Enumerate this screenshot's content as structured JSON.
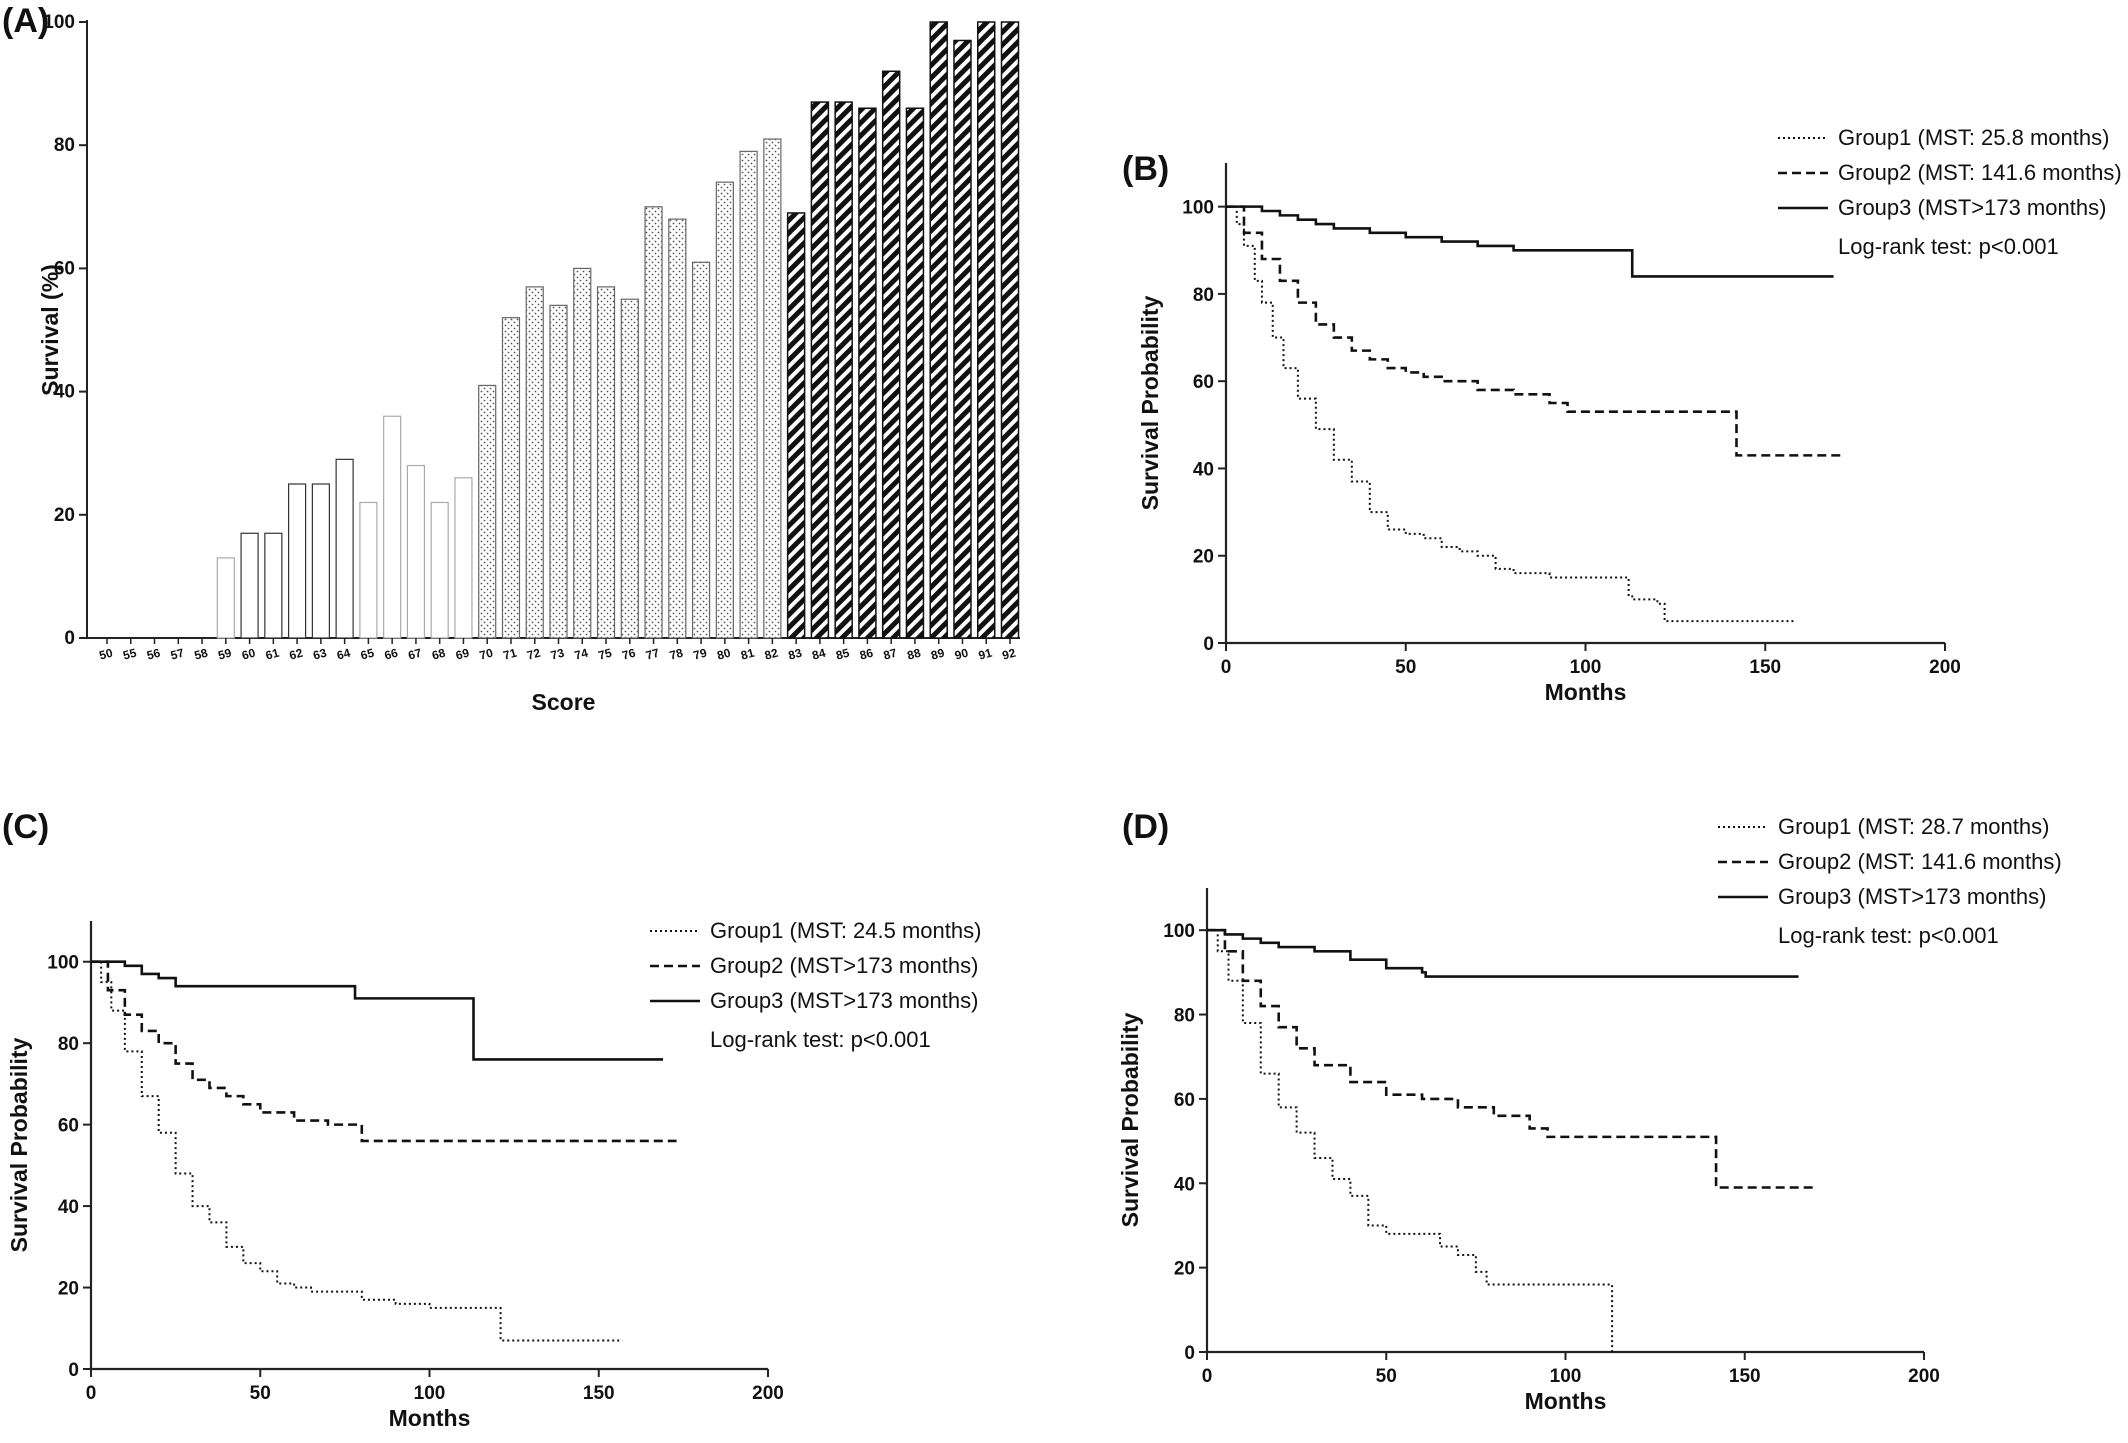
{
  "chart_data": [
    {
      "panel": "(A)",
      "type": "bar",
      "xlabel": "Score",
      "ylabel": "Survival (%)",
      "ylim": [
        0,
        100
      ],
      "yticks": [
        0,
        20,
        40,
        60,
        80,
        100
      ],
      "categories": [
        "50",
        "55",
        "56",
        "57",
        "58",
        "59",
        "60",
        "61",
        "62",
        "63",
        "64",
        "65",
        "66",
        "67",
        "68",
        "69",
        "70",
        "71",
        "72",
        "73",
        "74",
        "75",
        "76",
        "77",
        "78",
        "79",
        "80",
        "81",
        "82",
        "83",
        "84",
        "85",
        "86",
        "87",
        "88",
        "89",
        "90",
        "91",
        "92"
      ],
      "values": [
        0,
        0,
        0,
        0,
        0,
        13,
        17,
        17,
        25,
        25,
        29,
        22,
        36,
        28,
        22,
        26,
        41,
        52,
        57,
        54,
        60,
        57,
        55,
        70,
        68,
        61,
        74,
        79,
        81,
        69,
        87,
        87,
        86,
        92,
        86,
        100,
        97,
        100,
        100
      ],
      "fill_patterns": [
        "none",
        "none",
        "none",
        "none",
        "none",
        "light",
        "dark",
        "dark",
        "dark",
        "dark",
        "dark",
        "light",
        "light",
        "light",
        "light",
        "light",
        "dots",
        "dots",
        "dots",
        "dots",
        "dots",
        "dots",
        "dots",
        "dots",
        "dots",
        "dots",
        "dots",
        "dots",
        "dots",
        "hatch",
        "hatch",
        "hatch",
        "hatch",
        "hatch",
        "hatch",
        "hatch",
        "hatch",
        "hatch",
        "hatch"
      ]
    },
    {
      "panel": "(B)",
      "type": "line",
      "xlabel": "Months",
      "ylabel": "Survival Probability",
      "xlim": [
        0,
        200
      ],
      "ylim": [
        0,
        110
      ],
      "xticks": [
        0,
        50,
        100,
        150,
        200
      ],
      "yticks": [
        0,
        20,
        40,
        60,
        80,
        100
      ],
      "annotation": "Log-rank test: p<0.001",
      "series": [
        {
          "name": "Group1 (MST: 25.8 months)",
          "style": "dotted",
          "x": [
            0,
            3,
            5,
            8,
            10,
            13,
            16,
            20,
            25,
            30,
            35,
            40,
            45,
            50,
            55,
            60,
            65,
            70,
            75,
            80,
            90,
            100,
            112,
            113,
            120,
            122,
            158
          ],
          "y": [
            100,
            96,
            91,
            83,
            78,
            70,
            63,
            56,
            49,
            42,
            37,
            30,
            26,
            25,
            24,
            22,
            21,
            20,
            17,
            16,
            15,
            15,
            11,
            10,
            9,
            5,
            5
          ]
        },
        {
          "name": "Group2 (MST: 141.6 months)",
          "style": "dashed",
          "x": [
            0,
            5,
            10,
            15,
            20,
            25,
            30,
            35,
            40,
            45,
            50,
            55,
            60,
            70,
            80,
            90,
            95,
            100,
            130,
            141,
            142,
            172
          ],
          "y": [
            100,
            94,
            88,
            83,
            78,
            73,
            70,
            67,
            65,
            63,
            62,
            61,
            60,
            58,
            57,
            55,
            53,
            53,
            53,
            53,
            43,
            43
          ]
        },
        {
          "name": "Group3 (MST>173 months)",
          "style": "solid",
          "x": [
            0,
            5,
            10,
            15,
            20,
            25,
            30,
            40,
            50,
            60,
            70,
            80,
            90,
            100,
            112,
            113,
            169
          ],
          "y": [
            100,
            100,
            99,
            98,
            97,
            96,
            95,
            94,
            93,
            92,
            91,
            90,
            90,
            90,
            90,
            84,
            84
          ]
        }
      ]
    },
    {
      "panel": "(C)",
      "type": "line",
      "xlabel": "Months",
      "ylabel": "Survival Probability",
      "xlim": [
        0,
        200
      ],
      "ylim": [
        0,
        110
      ],
      "xticks": [
        0,
        50,
        100,
        150,
        200
      ],
      "yticks": [
        0,
        20,
        40,
        60,
        80,
        100
      ],
      "annotation": "Log-rank test: p<0.001",
      "series": [
        {
          "name": "Group1 (MST: 24.5 months)",
          "style": "dotted",
          "x": [
            0,
            3,
            6,
            10,
            15,
            20,
            25,
            30,
            35,
            40,
            45,
            50,
            55,
            60,
            65,
            70,
            80,
            90,
            100,
            112,
            120,
            121,
            157
          ],
          "y": [
            100,
            95,
            88,
            78,
            67,
            58,
            48,
            40,
            36,
            30,
            26,
            24,
            21,
            20,
            19,
            19,
            17,
            16,
            15,
            15,
            15,
            7,
            7
          ]
        },
        {
          "name": "Group2 (MST>173 months)",
          "style": "dashed",
          "x": [
            0,
            5,
            10,
            15,
            20,
            25,
            30,
            35,
            40,
            45,
            50,
            60,
            70,
            80,
            100,
            140,
            173
          ],
          "y": [
            100,
            93,
            87,
            83,
            80,
            75,
            71,
            69,
            67,
            65,
            63,
            61,
            60,
            56,
            56,
            56,
            56
          ]
        },
        {
          "name": "Group3 (MST>173 months)",
          "style": "solid",
          "x": [
            0,
            10,
            15,
            20,
            25,
            50,
            77,
            78,
            112,
            113,
            169
          ],
          "y": [
            100,
            99,
            97,
            96,
            94,
            94,
            94,
            91,
            91,
            76,
            76
          ]
        }
      ]
    },
    {
      "panel": "(D)",
      "type": "line",
      "xlabel": "Months",
      "ylabel": "Survival Probability",
      "xlim": [
        0,
        200
      ],
      "ylim": [
        0,
        110
      ],
      "xticks": [
        0,
        50,
        100,
        150,
        200
      ],
      "yticks": [
        0,
        20,
        40,
        60,
        80,
        100
      ],
      "annotation": "Log-rank test: p<0.001",
      "series": [
        {
          "name": "Group1 (MST: 28.7 months)",
          "style": "dotted",
          "x": [
            0,
            3,
            6,
            10,
            15,
            20,
            25,
            30,
            35,
            40,
            45,
            50,
            60,
            65,
            70,
            75,
            78,
            90,
            112,
            113
          ],
          "y": [
            100,
            95,
            88,
            78,
            66,
            58,
            52,
            46,
            41,
            37,
            30,
            28,
            28,
            25,
            23,
            19,
            16,
            16,
            16,
            0
          ]
        },
        {
          "name": "Group2 (MST: 141.6 months)",
          "style": "dashed",
          "x": [
            0,
            5,
            10,
            15,
            20,
            25,
            30,
            40,
            50,
            60,
            70,
            80,
            90,
            95,
            141,
            142,
            170
          ],
          "y": [
            100,
            95,
            88,
            82,
            77,
            72,
            68,
            64,
            61,
            60,
            58,
            56,
            53,
            51,
            51,
            39,
            39
          ]
        },
        {
          "name": "Group3 (MST>173 months)",
          "style": "solid",
          "x": [
            0,
            5,
            10,
            15,
            20,
            30,
            40,
            50,
            60,
            61,
            165
          ],
          "y": [
            100,
            99,
            98,
            97,
            96,
            95,
            93,
            91,
            90,
            89,
            89
          ]
        }
      ]
    }
  ]
}
